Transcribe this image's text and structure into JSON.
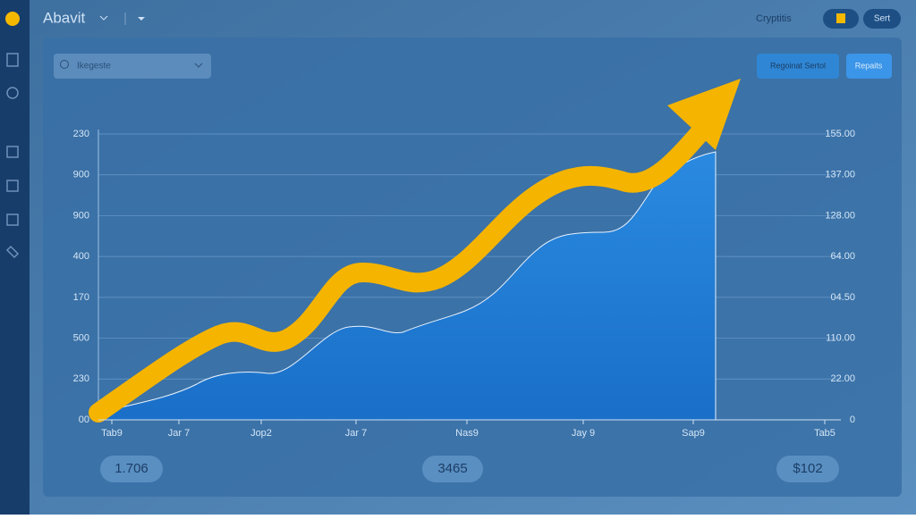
{
  "header": {
    "title": "Abavit",
    "account_label": "Cryptitis",
    "button": "Sert"
  },
  "search": {
    "placeholder": "Ikegeste"
  },
  "toolbar": {
    "buttons": [
      "Regoinat Sertol",
      "Repaits"
    ]
  },
  "chart": {
    "left_axis": [
      "230",
      "900",
      "900",
      "400",
      "170",
      "500",
      "230",
      "00"
    ],
    "right_axis": [
      "155.00",
      "137.00",
      "128.00",
      "64.00",
      "04.50",
      "110.00",
      "22.00",
      "0"
    ],
    "x_labels": [
      "Tab9",
      "Jar 7",
      "Jop2",
      "Jar 7",
      "Nas9",
      "Jay 9",
      "Sap9",
      "Tab5"
    ]
  },
  "summary": [
    "1.706",
    "3465",
    "$102"
  ]
}
